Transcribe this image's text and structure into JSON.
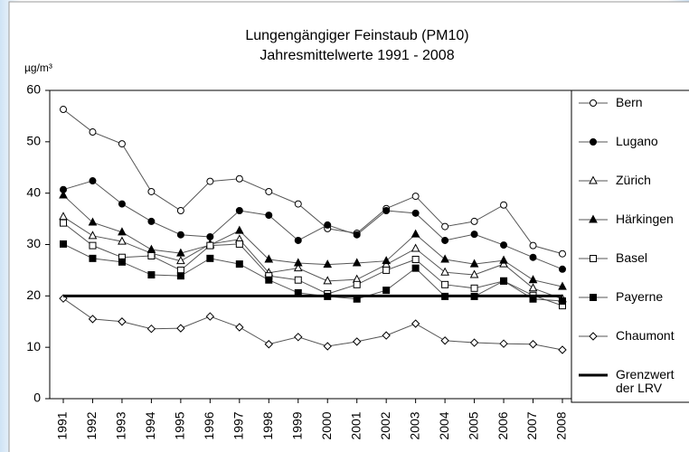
{
  "chart_data": {
    "type": "line",
    "title": "Lungengängiger Feinstaub (PM10)",
    "subtitle": "Jahresmittelwerte 1991 - 2008",
    "y_label": "µg/m³",
    "categories": [
      "1991",
      "1992",
      "1993",
      "1994",
      "1995",
      "1996",
      "1997",
      "1998",
      "1999",
      "2000",
      "2001",
      "2002",
      "2003",
      "2004",
      "2005",
      "2006",
      "2007",
      "2008"
    ],
    "ylim": [
      0,
      60
    ],
    "yticks": [
      0,
      10,
      20,
      30,
      40,
      50,
      60
    ],
    "series": [
      {
        "name": "Bern",
        "color": "#555555",
        "marker": "circle-open",
        "line_width": 1,
        "values": [
          56.3,
          51.9,
          49.6,
          40.3,
          36.6,
          42.3,
          42.8,
          40.3,
          37.9,
          33.1,
          32.2,
          37.0,
          39.4,
          33.5,
          34.5,
          37.7,
          29.8,
          28.2
        ]
      },
      {
        "name": "Lugano",
        "color": "#555555",
        "marker": "circle",
        "line_width": 1,
        "values": [
          40.7,
          42.4,
          37.9,
          34.5,
          31.9,
          31.5,
          36.6,
          35.7,
          30.8,
          33.8,
          31.9,
          36.6,
          36.1,
          30.8,
          32.0,
          29.9,
          27.5,
          25.2
        ]
      },
      {
        "name": "Zürich",
        "color": "#555555",
        "marker": "triangle-open",
        "line_width": 1,
        "values": [
          35.4,
          31.7,
          30.6,
          28.3,
          26.8,
          30.1,
          31.0,
          24.5,
          25.4,
          22.9,
          23.2,
          26.1,
          29.2,
          24.6,
          24.1,
          26.2,
          21.5,
          19.4
        ]
      },
      {
        "name": "Härkingen",
        "color": "#555555",
        "marker": "triangle",
        "line_width": 1,
        "values": [
          39.6,
          34.3,
          32.4,
          29.0,
          28.3,
          29.9,
          32.7,
          27.1,
          26.4,
          26.1,
          26.4,
          26.8,
          32.0,
          27.1,
          26.2,
          26.9,
          23.1,
          21.8
        ]
      },
      {
        "name": "Basel",
        "color": "#555555",
        "marker": "square-open",
        "line_width": 1,
        "values": [
          34.2,
          29.8,
          27.5,
          27.8,
          25.0,
          29.8,
          30.1,
          23.9,
          23.1,
          20.4,
          22.2,
          25.0,
          27.1,
          22.2,
          21.5,
          22.9,
          20.1,
          18.1
        ]
      },
      {
        "name": "Payerne",
        "color": "#555555",
        "marker": "square",
        "line_width": 1,
        "values": [
          30.1,
          27.3,
          26.6,
          24.1,
          23.9,
          27.3,
          26.2,
          23.1,
          20.6,
          19.9,
          19.4,
          21.1,
          25.4,
          19.9,
          19.9,
          22.9,
          19.4,
          19.0
        ]
      },
      {
        "name": "Chaumont",
        "color": "#555555",
        "marker": "diamond-open",
        "line_width": 1,
        "values": [
          19.5,
          15.5,
          15.0,
          13.6,
          13.7,
          16.0,
          13.9,
          10.6,
          12.0,
          10.2,
          11.1,
          12.3,
          14.6,
          11.3,
          10.9,
          10.7,
          10.6,
          9.5
        ]
      },
      {
        "name": "Grenzwert der LRV",
        "color": "#000000",
        "marker": "none",
        "line_width": 3,
        "values": [
          20,
          20,
          20,
          20,
          20,
          20,
          20,
          20,
          20,
          20,
          20,
          20,
          20,
          20,
          20,
          20,
          20,
          20
        ]
      }
    ]
  }
}
